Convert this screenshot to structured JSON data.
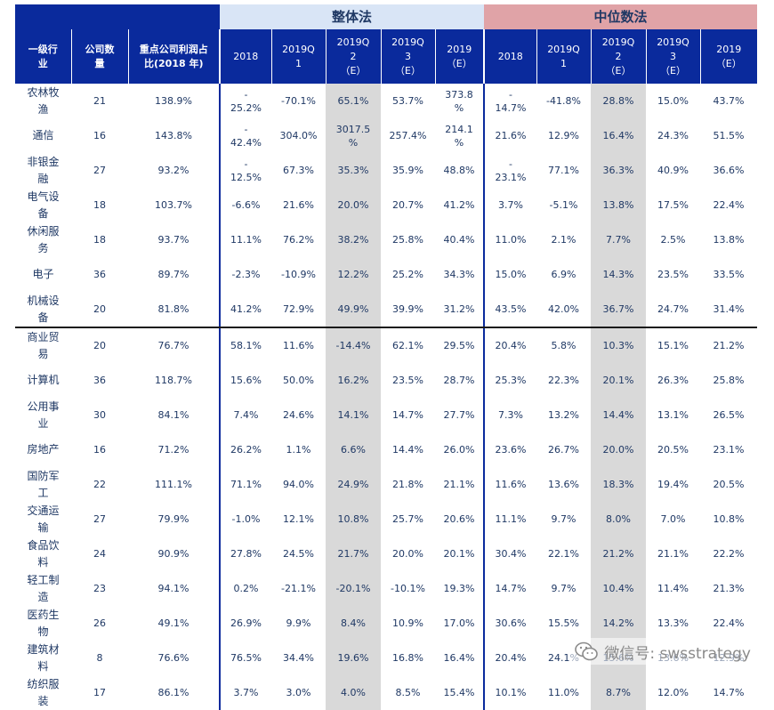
{
  "header": {
    "col_industry": "一级行\n业",
    "col_count": "公司数\n量",
    "col_ratio": "重点公司利润占\n比(2018 年)",
    "group_whole": "整体法",
    "group_median": "中位数法",
    "periods": [
      "2018",
      "2019Q\n1",
      "2019Q\n2\n（E）",
      "2019Q\n3\n（E）",
      "2019\n（E）"
    ]
  },
  "rows": [
    {
      "industry": "农林牧\n渔",
      "count": "21",
      "ratio": "138.9%",
      "whole": [
        "-\n25.2%",
        "-70.1%",
        "65.1%",
        "53.7%",
        "373.8\n%"
      ],
      "median": [
        "-\n14.7%",
        "-41.8%",
        "28.8%",
        "15.0%",
        "43.7%"
      ]
    },
    {
      "industry": "通信",
      "count": "16",
      "ratio": "143.8%",
      "whole": [
        "-\n42.4%",
        "304.0%",
        "3017.5\n%",
        "257.4%",
        "214.1\n%"
      ],
      "median": [
        "21.6%",
        "12.9%",
        "16.4%",
        "24.3%",
        "51.5%"
      ]
    },
    {
      "industry": "非银金\n融",
      "count": "27",
      "ratio": "93.2%",
      "whole": [
        "-\n12.5%",
        "67.3%",
        "35.3%",
        "35.9%",
        "48.8%"
      ],
      "median": [
        "-\n23.1%",
        "77.1%",
        "36.3%",
        "40.9%",
        "36.6%"
      ]
    },
    {
      "industry": "电气设\n备",
      "count": "18",
      "ratio": "103.7%",
      "whole": [
        "-6.6%",
        "21.6%",
        "20.0%",
        "20.7%",
        "41.2%"
      ],
      "median": [
        "3.7%",
        "-5.1%",
        "13.8%",
        "17.5%",
        "22.4%"
      ]
    },
    {
      "industry": "休闲服\n务",
      "count": "18",
      "ratio": "93.7%",
      "whole": [
        "11.1%",
        "76.2%",
        "38.2%",
        "25.8%",
        "40.4%"
      ],
      "median": [
        "11.0%",
        "2.1%",
        "7.7%",
        "2.5%",
        "13.8%"
      ]
    },
    {
      "industry": "电子",
      "count": "36",
      "ratio": "89.7%",
      "whole": [
        "-2.3%",
        "-10.9%",
        "12.2%",
        "25.2%",
        "34.3%"
      ],
      "median": [
        "15.0%",
        "6.9%",
        "14.3%",
        "23.5%",
        "33.5%"
      ]
    },
    {
      "industry": "机械设\n备",
      "count": "20",
      "ratio": "81.8%",
      "whole": [
        "41.2%",
        "72.9%",
        "49.9%",
        "39.9%",
        "31.2%"
      ],
      "median": [
        "43.5%",
        "42.0%",
        "36.7%",
        "24.7%",
        "31.4%"
      ]
    },
    {
      "industry": "商业贸\n易",
      "count": "20",
      "ratio": "76.7%",
      "whole": [
        "58.1%",
        "11.6%",
        "-14.4%",
        "62.1%",
        "29.5%"
      ],
      "median": [
        "20.4%",
        "5.8%",
        "10.3%",
        "15.1%",
        "21.2%"
      ]
    },
    {
      "industry": "计算机",
      "count": "36",
      "ratio": "118.7%",
      "whole": [
        "15.6%",
        "50.0%",
        "16.2%",
        "23.5%",
        "28.7%"
      ],
      "median": [
        "25.3%",
        "22.3%",
        "20.1%",
        "26.3%",
        "25.8%"
      ]
    },
    {
      "industry": "公用事\n业",
      "count": "30",
      "ratio": "84.1%",
      "whole": [
        "7.4%",
        "24.6%",
        "14.1%",
        "14.7%",
        "27.7%"
      ],
      "median": [
        "7.3%",
        "13.2%",
        "14.4%",
        "13.1%",
        "26.5%"
      ]
    },
    {
      "industry": "房地产",
      "count": "16",
      "ratio": "71.2%",
      "whole": [
        "26.2%",
        "1.1%",
        "6.6%",
        "14.4%",
        "26.0%"
      ],
      "median": [
        "23.6%",
        "26.7%",
        "20.0%",
        "20.5%",
        "23.1%"
      ]
    },
    {
      "industry": "国防军\n工",
      "count": "22",
      "ratio": "111.1%",
      "whole": [
        "71.1%",
        "94.0%",
        "24.9%",
        "21.8%",
        "21.1%"
      ],
      "median": [
        "11.6%",
        "13.6%",
        "18.3%",
        "19.4%",
        "20.5%"
      ]
    },
    {
      "industry": "交通运\n输",
      "count": "27",
      "ratio": "79.9%",
      "whole": [
        "-1.0%",
        "12.1%",
        "10.8%",
        "25.7%",
        "20.6%"
      ],
      "median": [
        "11.1%",
        "9.7%",
        "8.0%",
        "7.0%",
        "10.8%"
      ]
    },
    {
      "industry": "食品饮\n料",
      "count": "24",
      "ratio": "90.9%",
      "whole": [
        "27.8%",
        "24.5%",
        "21.7%",
        "20.0%",
        "20.1%"
      ],
      "median": [
        "30.4%",
        "22.1%",
        "21.2%",
        "21.1%",
        "22.2%"
      ]
    },
    {
      "industry": "轻工制\n造",
      "count": "23",
      "ratio": "94.1%",
      "whole": [
        "0.2%",
        "-21.1%",
        "-20.1%",
        "-10.1%",
        "19.3%"
      ],
      "median": [
        "14.7%",
        "9.7%",
        "10.4%",
        "11.4%",
        "21.3%"
      ]
    },
    {
      "industry": "医药生\n物",
      "count": "26",
      "ratio": "49.1%",
      "whole": [
        "26.9%",
        "9.9%",
        "8.4%",
        "10.9%",
        "17.0%"
      ],
      "median": [
        "30.6%",
        "15.5%",
        "14.2%",
        "13.3%",
        "22.4%"
      ]
    },
    {
      "industry": "建筑材\n料",
      "count": "8",
      "ratio": "76.6%",
      "whole": [
        "76.5%",
        "34.4%",
        "19.6%",
        "16.8%",
        "16.4%"
      ],
      "median": [
        "20.4%",
        "24.1%",
        "15.6%",
        "13.6%",
        "12.9%"
      ]
    },
    {
      "industry": "纺织服\n装",
      "count": "17",
      "ratio": "86.1%",
      "whole": [
        "3.7%",
        "3.0%",
        "4.0%",
        "8.5%",
        "15.4%"
      ],
      "median": [
        "10.1%",
        "11.0%",
        "8.7%",
        "12.0%",
        "14.7%"
      ]
    }
  ],
  "watermark": {
    "text": "微信号: swsstrategy",
    "icon": "wechat-icon"
  }
}
